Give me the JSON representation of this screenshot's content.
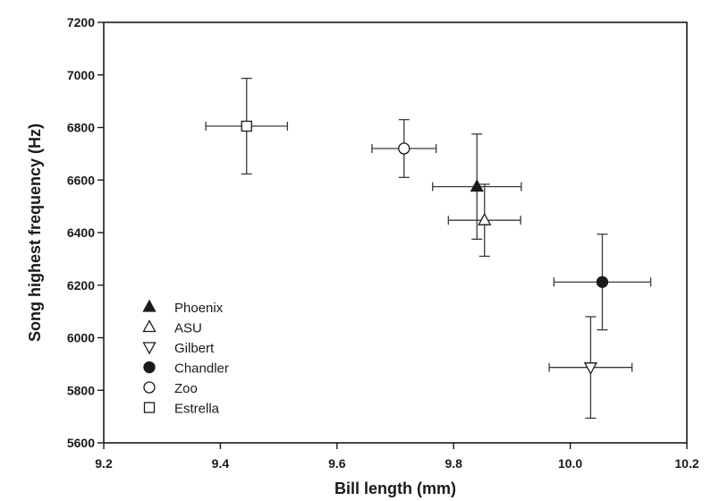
{
  "chart_data": {
    "type": "scatter",
    "xlabel": "Bill length (mm)",
    "ylabel": "Song highest frequency (Hz)",
    "xlim": [
      9.2,
      10.2
    ],
    "ylim": [
      5600,
      7200
    ],
    "x_ticks": [
      9.2,
      9.4,
      9.6,
      9.8,
      10.0,
      10.2
    ],
    "x_tick_labels": [
      "9.2",
      "9.4",
      "9.6",
      "9.8",
      "10.0",
      "10.2"
    ],
    "y_ticks": [
      5600,
      5800,
      6000,
      6200,
      6400,
      6600,
      6800,
      7000,
      7200
    ],
    "y_tick_labels": [
      "5600",
      "5800",
      "6000",
      "6200",
      "6400",
      "6600",
      "6800",
      "7000",
      "7200"
    ],
    "grid": false,
    "legend_position": "bottom-left",
    "series": [
      {
        "name": "Phoenix",
        "marker": "triangle-up-filled",
        "x": 9.84,
        "y": 6575,
        "x_err": 0.076,
        "y_err": 200
      },
      {
        "name": "ASU",
        "marker": "triangle-up-open",
        "x": 9.853,
        "y": 6447,
        "x_err": 0.062,
        "y_err": 137
      },
      {
        "name": "Gilbert",
        "marker": "triangle-down-open",
        "x": 10.035,
        "y": 5887,
        "x_err": 0.071,
        "y_err": 193
      },
      {
        "name": "Chandler",
        "marker": "circle-filled",
        "x": 10.055,
        "y": 6212,
        "x_err": 0.083,
        "y_err": 182
      },
      {
        "name": "Zoo",
        "marker": "circle-open",
        "x": 9.715,
        "y": 6720,
        "x_err": 0.055,
        "y_err": 110
      },
      {
        "name": "Estrella",
        "marker": "square-open",
        "x": 9.445,
        "y": 6805,
        "x_err": 0.07,
        "y_err": 182
      }
    ]
  }
}
